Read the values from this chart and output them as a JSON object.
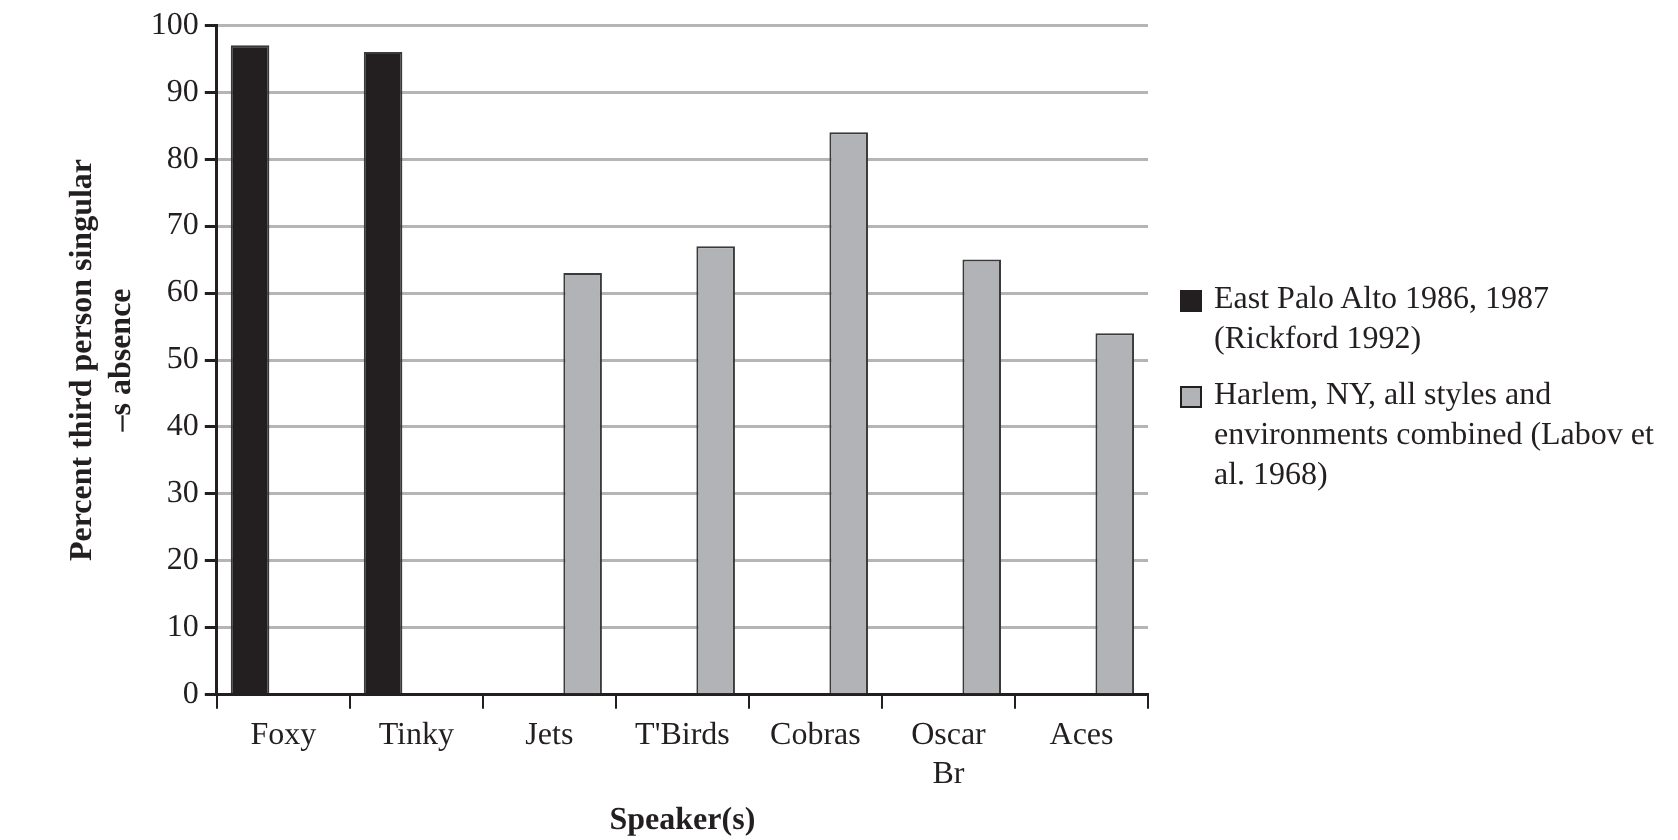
{
  "chart_data": {
    "type": "bar",
    "xlabel": "Speaker(s)",
    "ylabel": "Percent third person singular –s absence",
    "categories": [
      "Foxy",
      "Tinky",
      "Jets",
      "T'Birds",
      "Cobras",
      "Oscar Br",
      "Aces"
    ],
    "series": [
      {
        "name": "East Palo Alto 1986, 1987 (Rickford 1992)",
        "color": "#231f20",
        "values": [
          97,
          96,
          null,
          null,
          null,
          null,
          null
        ]
      },
      {
        "name": "Harlem, NY, all styles and environments combined (Labov et al. 1968)",
        "color": "#b2b3b6",
        "values": [
          null,
          null,
          63,
          67,
          84,
          65,
          54
        ]
      }
    ],
    "ylim": [
      0,
      100
    ],
    "yticks": [
      0,
      10,
      20,
      30,
      40,
      50,
      60,
      70,
      80,
      90,
      100
    ],
    "grid": "y",
    "legend": "right"
  }
}
